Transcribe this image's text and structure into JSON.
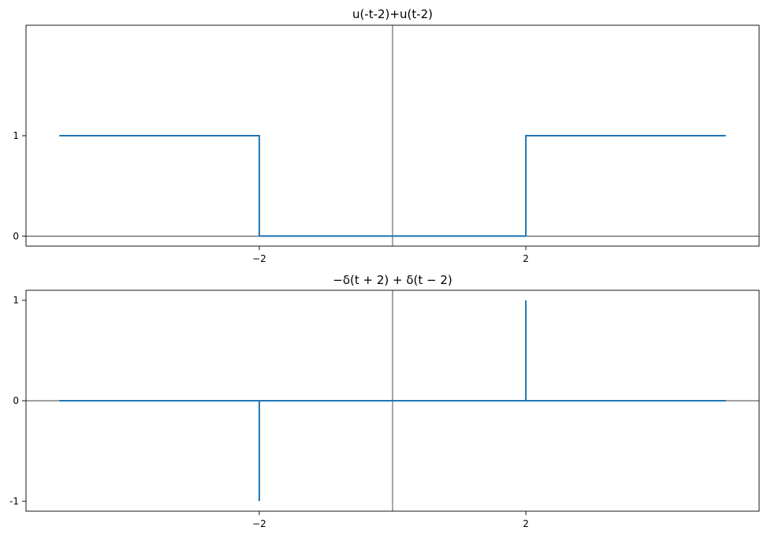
{
  "chart_data": [
    {
      "type": "line",
      "title": "u(-t-2)+u(t-2)",
      "xlim": [
        -5.5,
        5.5
      ],
      "ylim": [
        -0.1,
        2.1
      ],
      "x_ticks": [
        -2,
        2
      ],
      "x_tick_labels": [
        "−2",
        "2"
      ],
      "y_ticks": [
        0,
        1
      ],
      "y_tick_labels": [
        "0",
        "1"
      ],
      "zero_lines": true,
      "grid": false,
      "series": [
        {
          "color": "#1f77b4",
          "x": [
            -5,
            -2,
            -2,
            2,
            2,
            5
          ],
          "y": [
            1,
            1,
            0,
            0,
            1,
            1
          ]
        }
      ]
    },
    {
      "type": "line",
      "title": "−δ(t + 2) + δ(t − 2)",
      "xlim": [
        -5.5,
        5.5
      ],
      "ylim": [
        -1.1,
        1.1
      ],
      "x_ticks": [
        -2,
        2
      ],
      "x_tick_labels": [
        "−2",
        "2"
      ],
      "y_ticks": [
        -1,
        0,
        1
      ],
      "y_tick_labels": [
        "-1",
        "0",
        "1"
      ],
      "zero_lines": true,
      "grid": false,
      "series": [
        {
          "color": "#1f77b4",
          "x": [
            -5,
            -2,
            -2,
            -2,
            2,
            2,
            2,
            5
          ],
          "y": [
            0,
            0,
            -1,
            0,
            0,
            1,
            0,
            0
          ]
        }
      ]
    }
  ]
}
